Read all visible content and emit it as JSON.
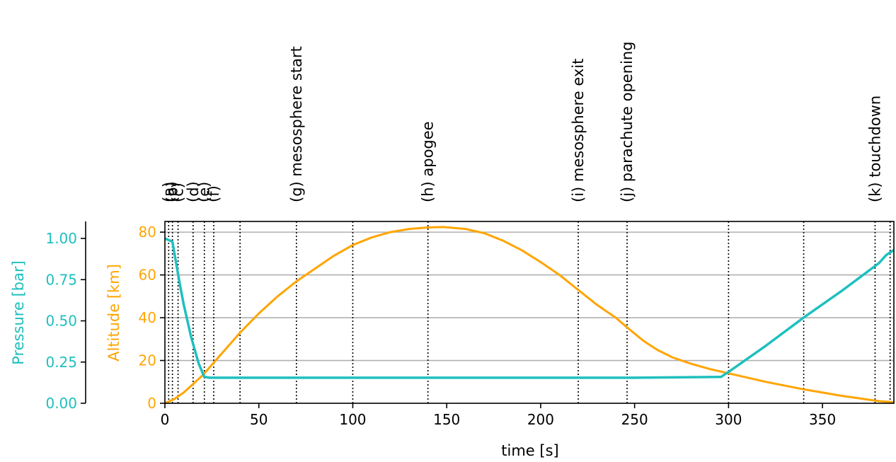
{
  "chart_data": {
    "type": "line",
    "xlabel": "time [s]",
    "xlim": [
      0,
      388
    ],
    "x_ticks": [
      0,
      50,
      100,
      150,
      200,
      250,
      300,
      350
    ],
    "altitude_axis": {
      "label": "Altitude [km]",
      "ylim": [
        0,
        85
      ],
      "ticks": [
        0,
        20,
        40,
        60,
        80
      ],
      "color": "#ffa500"
    },
    "pressure_axis": {
      "label": "Pressure [bar]",
      "ylim": [
        0,
        1.0
      ],
      "ticks": [
        "0.00",
        "0.25",
        "0.50",
        "0.75",
        "1.00"
      ],
      "color": "#1fbfbf"
    },
    "grid": "horizontal (altitude axis)",
    "series": [
      {
        "axis": "altitude",
        "color": "#ffa500",
        "x": [
          0,
          5,
          10,
          20,
          30,
          40,
          50,
          60,
          70,
          80,
          90,
          100,
          110,
          120,
          130,
          140,
          148,
          160,
          170,
          180,
          190,
          200,
          210,
          220,
          230,
          240,
          246,
          255,
          262,
          270,
          280,
          290,
          300,
          320,
          340,
          360,
          380,
          388
        ],
        "values": [
          0,
          2,
          5,
          13,
          23,
          33,
          42,
          50,
          57,
          63,
          69,
          74,
          77.5,
          80,
          81.5,
          82.2,
          82.4,
          81.5,
          79.5,
          76,
          71.5,
          66,
          60,
          53,
          46,
          40,
          35.5,
          29,
          25,
          21.5,
          18.5,
          16,
          14,
          10,
          6.5,
          3.5,
          1,
          0.5
        ]
      },
      {
        "axis": "pressure",
        "color": "#1fbfbf",
        "x": [
          0,
          2,
          4,
          6,
          8,
          10,
          14,
          18,
          21,
          24,
          30,
          50,
          100,
          150,
          200,
          250,
          296,
          300,
          320,
          340,
          360,
          380,
          384,
          388
        ],
        "values": [
          1.0,
          0.99,
          0.98,
          0.85,
          0.72,
          0.6,
          0.4,
          0.24,
          0.16,
          0.155,
          0.155,
          0.155,
          0.155,
          0.155,
          0.155,
          0.155,
          0.16,
          0.19,
          0.35,
          0.52,
          0.68,
          0.85,
          0.9,
          0.93
        ]
      }
    ],
    "events": [
      {
        "x": 2,
        "label": "(a)"
      },
      {
        "x": 4,
        "label": "(b)"
      },
      {
        "x": 7,
        "label": "(c)"
      },
      {
        "x": 15,
        "label": "(d)"
      },
      {
        "x": 21,
        "label": "(e)"
      },
      {
        "x": 26,
        "label": "(f)"
      },
      {
        "x": 40,
        "label": ""
      },
      {
        "x": 70,
        "label": "(g) mesosphere start"
      },
      {
        "x": 100,
        "label": ""
      },
      {
        "x": 140,
        "label": "(h) apogee"
      },
      {
        "x": 220,
        "label": "(i) mesosphere exit"
      },
      {
        "x": 246,
        "label": "(j) parachute opening"
      },
      {
        "x": 300,
        "label": ""
      },
      {
        "x": 340,
        "label": ""
      },
      {
        "x": 378,
        "label": "(k) touchdown"
      },
      {
        "x": 386,
        "label": ""
      }
    ]
  }
}
